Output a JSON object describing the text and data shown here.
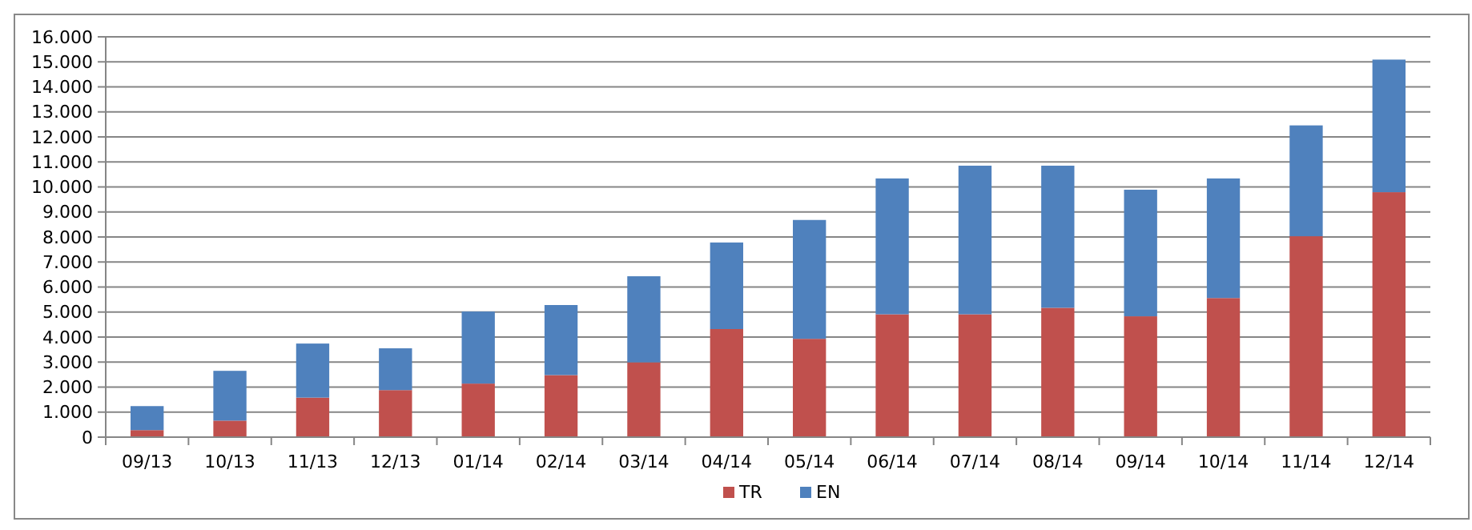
{
  "chart_data": {
    "type": "bar",
    "stacked": true,
    "categories": [
      "09/13",
      "10/13",
      "11/13",
      "12/13",
      "01/14",
      "02/14",
      "03/14",
      "04/14",
      "05/14",
      "06/14",
      "07/14",
      "08/14",
      "09/14",
      "10/14",
      "11/14",
      "12/14"
    ],
    "series": [
      {
        "name": "TR",
        "color": "#c0504d",
        "values": [
          280,
          660,
          1580,
          1880,
          2140,
          2480,
          2990,
          4320,
          3930,
          4910,
          4910,
          5170,
          4830,
          5560,
          8030,
          9790
        ]
      },
      {
        "name": "EN",
        "color": "#4f81bd",
        "values": [
          960,
          1990,
          2160,
          1670,
          2880,
          2800,
          3440,
          3460,
          4750,
          5430,
          5940,
          5680,
          5060,
          4780,
          4430,
          5300
        ]
      }
    ],
    "ylim": [
      0,
      16000
    ],
    "yticks": [
      0,
      {
        "value": 1000,
        "label": "1.000"
      },
      {
        "value": 2000,
        "label": "2.000"
      },
      {
        "value": 3000,
        "label": "3.000"
      },
      {
        "value": 4000,
        "label": "4.000"
      },
      {
        "value": 5000,
        "label": "5.000"
      },
      {
        "value": 6000,
        "label": "6.000"
      },
      {
        "value": 7000,
        "label": "7.000"
      },
      {
        "value": 8000,
        "label": "8.000"
      },
      {
        "value": 9000,
        "label": "9.000"
      },
      {
        "value": 10000,
        "label": "10.000"
      },
      {
        "value": 11000,
        "label": "11.000"
      },
      {
        "value": 12000,
        "label": "12.000"
      },
      {
        "value": 13000,
        "label": "13.000"
      },
      {
        "value": 14000,
        "label": "14.000"
      },
      {
        "value": 15000,
        "label": "15.000"
      },
      {
        "value": 16000,
        "label": "16.000"
      }
    ],
    "grid": "y",
    "legend": "bottom"
  }
}
